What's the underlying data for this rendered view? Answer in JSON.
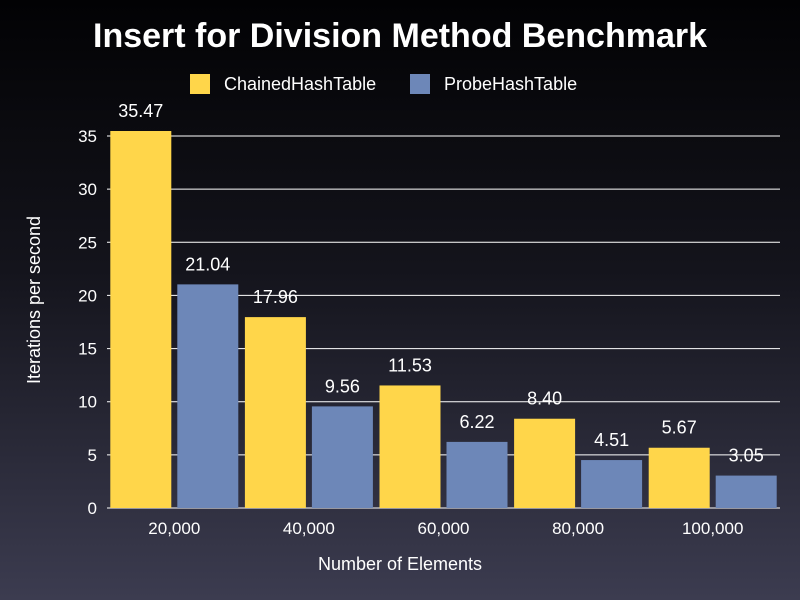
{
  "chart_data": {
    "type": "bar",
    "title": "Insert for Division Method Benchmark",
    "xlabel": "Number of Elements",
    "ylabel": "Iterations per second",
    "categories": [
      "20,000",
      "40,000",
      "60,000",
      "80,000",
      "100,000"
    ],
    "series": [
      {
        "name": "ChainedHashTable",
        "color": "#ffd64a",
        "values": [
          35.47,
          17.96,
          11.53,
          8.4,
          5.67
        ],
        "labels": [
          "35.47",
          "17.96",
          "11.53",
          "8.40",
          "5.67"
        ]
      },
      {
        "name": "ProbeHashTable",
        "color": "#6d87b8",
        "values": [
          21.04,
          9.56,
          6.22,
          4.51,
          3.05
        ],
        "labels": [
          "21.04",
          "9.56",
          "6.22",
          "4.51",
          "3.05"
        ]
      }
    ],
    "ylim": [
      0,
      35
    ],
    "yticks": [
      "0",
      "5",
      "10",
      "15",
      "20",
      "25",
      "30",
      "35"
    ],
    "grid": true,
    "legend_position": "top"
  }
}
